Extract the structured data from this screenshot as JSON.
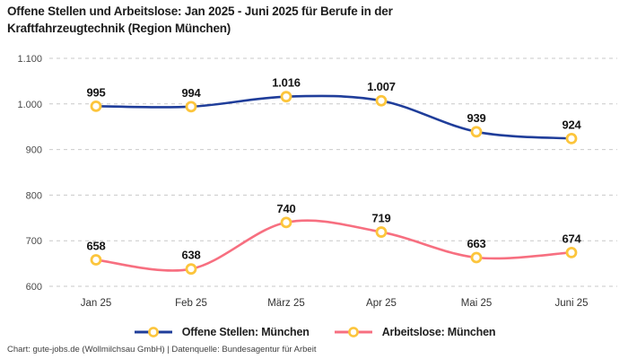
{
  "header": {
    "title": "Offene Stellen und Arbeitslose: Jan 2025 - Juni 2025 für Berufe in der Kraftfahrzeugtechnik (Region München)"
  },
  "footer": {
    "credit": "Chart: gute-jobs.de (Wollmilchsau GmbH) | Datenquelle: Bundesagentur für Arbeit"
  },
  "chart_data": {
    "type": "line",
    "title": "Offene Stellen und Arbeitslose: Jan 2025 - Juni 2025 für Berufe in der Kraftfahrzeugtechnik (Region München)",
    "categories": [
      "Jan 25",
      "Feb 25",
      "März 25",
      "Apr 25",
      "Mai 25",
      "Juni 25"
    ],
    "series": [
      {
        "name": "Offene Stellen: München",
        "values": [
          995,
          994,
          1016,
          1007,
          939,
          924
        ],
        "labels": [
          "995",
          "994",
          "1.016",
          "1.007",
          "939",
          "924"
        ],
        "color": "#1f3d9a"
      },
      {
        "name": "Arbeitslose: München",
        "values": [
          658,
          638,
          740,
          719,
          663,
          674
        ],
        "labels": [
          "658",
          "638",
          "740",
          "719",
          "663",
          "674"
        ],
        "color": "#f76f80"
      }
    ],
    "marker": {
      "fill": "#ffffff",
      "stroke": "#fcc53c"
    },
    "yticks": [
      600,
      700,
      800,
      900,
      1000,
      1100
    ],
    "ytick_labels": [
      "600",
      "700",
      "800",
      "900",
      "1.000",
      "1.100"
    ],
    "ylim": [
      600,
      1100
    ],
    "grid": "horizontal-dashed",
    "legend_position": "bottom",
    "line_style": "smooth"
  }
}
